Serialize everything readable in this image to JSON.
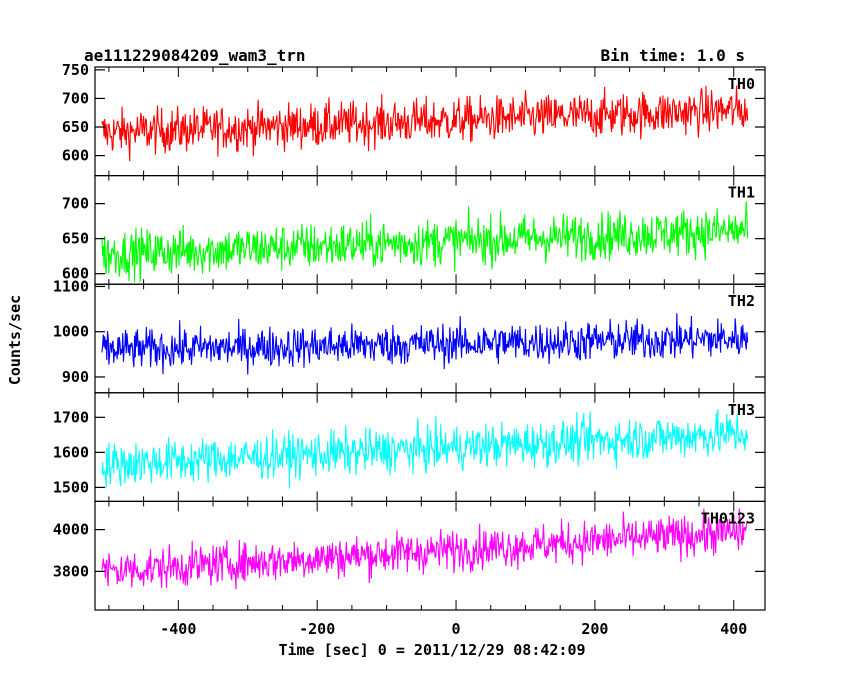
{
  "header": {
    "title": "ae111229084209_wam3_trn",
    "bin_time": "Bin time: 1.0 s"
  },
  "chart_data": {
    "type": "line",
    "xlabel": "Time [sec] 0 = 2011/12/29 08:42:09",
    "ylabel": "Counts/sec",
    "xlim": [
      -520,
      445
    ],
    "x_range": [
      -510,
      420
    ],
    "x_ticks": [
      -400,
      -200,
      0,
      200,
      400
    ],
    "panels": [
      {
        "name": "TH0",
        "color": "#ff0000",
        "ylim": [
          565,
          755
        ],
        "yticks": [
          600,
          650,
          700,
          750
        ],
        "trend": [
          640,
          680
        ],
        "noise": 28
      },
      {
        "name": "TH1",
        "color": "#00ff00",
        "ylim": [
          585,
          740
        ],
        "yticks": [
          600,
          650,
          700
        ],
        "trend": [
          628,
          662
        ],
        "noise": 24
      },
      {
        "name": "TH2",
        "color": "#0000ff",
        "ylim": [
          865,
          1105
        ],
        "yticks": [
          900,
          1000,
          1100
        ],
        "trend": [
          960,
          985
        ],
        "noise": 32
      },
      {
        "name": "TH3",
        "color": "#00ffff",
        "ylim": [
          1460,
          1770
        ],
        "yticks": [
          1500,
          1600,
          1700
        ],
        "trend": [
          1565,
          1655
        ],
        "noise": 45
      },
      {
        "name": "TH0123",
        "color": "#ff00ff",
        "ylim": [
          3615,
          4135
        ],
        "yticks": [
          3800,
          4000
        ],
        "trend": [
          3800,
          3990
        ],
        "noise": 70
      }
    ]
  }
}
